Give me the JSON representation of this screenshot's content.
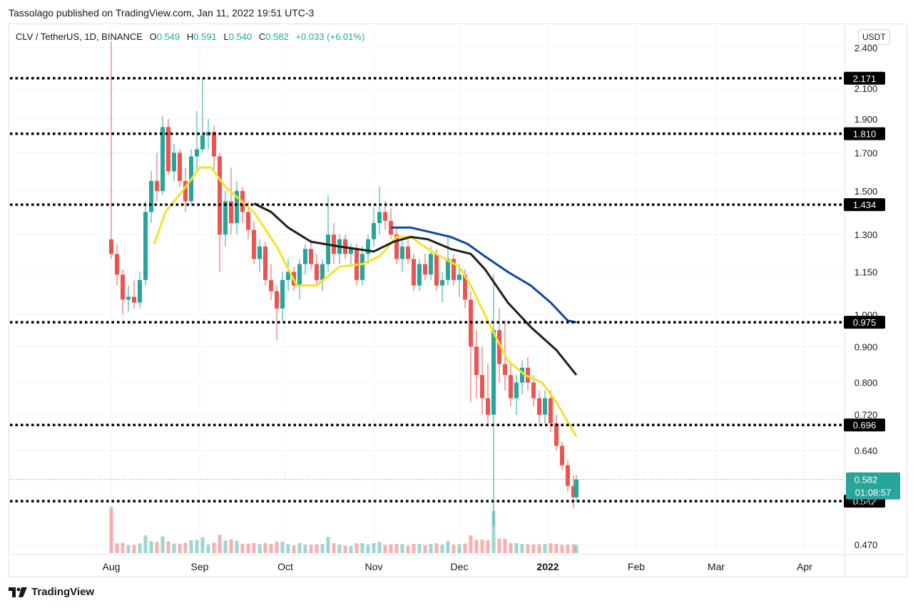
{
  "header": {
    "published": "Tassolago published on TradingView.com, Jan 11, 2022 19:51 UTC-3"
  },
  "legend": {
    "symbol": "CLV / TetherUS, 1D, BINANCE",
    "open_label": "O",
    "open": "0.549",
    "high_label": "H",
    "high": "0.591",
    "low_label": "L",
    "low": "0.540",
    "close_label": "C",
    "close": "0.582",
    "change": "+0.033 (+6.01%)"
  },
  "price_axis": {
    "unit": "USDT"
  },
  "brand": {
    "name": "TradingView",
    "logo_icon": "tradingview-logo-icon"
  },
  "colors": {
    "up": "#26a69a",
    "down": "#ef5350",
    "ma_fast": "#f5e327",
    "ma_mid": "#1e1e1e",
    "ma_slow": "#0d47a1",
    "level": "#000000"
  },
  "chart_data": {
    "type": "candlestick",
    "y_scale": "log",
    "ylim": [
      0.455,
      2.58
    ],
    "y_ticks": [
      "2.400",
      "2.100",
      "1.900",
      "1.700",
      "1.500",
      "1.300",
      "1.150",
      "1.000",
      "0.900",
      "0.800",
      "0.720",
      "0.640",
      "0.542",
      "0.470"
    ],
    "x_ticks": [
      "Aug",
      "Sep",
      "Oct",
      "Nov",
      "Dec",
      "2022",
      "Feb",
      "Mar",
      "Apr"
    ],
    "horizontal_levels": [
      "2.171",
      "1.810",
      "1.434",
      "0.975",
      "0.696",
      "0.542"
    ],
    "last_price": "0.582",
    "countdown": "01:08:57",
    "series": [
      {
        "name": "",
        "kind": "ma_fast",
        "points": [
          [
            "2021-08-16",
            1.26
          ],
          [
            "2021-08-20",
            1.4
          ],
          [
            "2021-08-26",
            1.5
          ],
          [
            "2021-09-01",
            1.62
          ],
          [
            "2021-09-05",
            1.62
          ],
          [
            "2021-09-10",
            1.52
          ],
          [
            "2021-09-20",
            1.4
          ],
          [
            "2021-09-28",
            1.25
          ],
          [
            "2021-10-05",
            1.1
          ],
          [
            "2021-10-12",
            1.1
          ],
          [
            "2021-10-20",
            1.17
          ],
          [
            "2021-10-28",
            1.18
          ],
          [
            "2021-11-03",
            1.21
          ],
          [
            "2021-11-09",
            1.29
          ],
          [
            "2021-11-14",
            1.29
          ],
          [
            "2021-11-20",
            1.24
          ],
          [
            "2021-11-26",
            1.2
          ],
          [
            "2021-12-01",
            1.17
          ],
          [
            "2021-12-05",
            1.1
          ],
          [
            "2021-12-12",
            0.96
          ],
          [
            "2021-12-18",
            0.86
          ],
          [
            "2021-12-24",
            0.82
          ],
          [
            "2021-12-30",
            0.8
          ],
          [
            "2022-01-04",
            0.75
          ],
          [
            "2022-01-11",
            0.67
          ]
        ]
      },
      {
        "name": "",
        "kind": "ma_mid",
        "points": [
          [
            "2021-09-20",
            1.44
          ],
          [
            "2021-09-26",
            1.4
          ],
          [
            "2021-10-02",
            1.33
          ],
          [
            "2021-10-10",
            1.27
          ],
          [
            "2021-10-20",
            1.25
          ],
          [
            "2021-11-01",
            1.23
          ],
          [
            "2021-11-08",
            1.27
          ],
          [
            "2021-11-14",
            1.29
          ],
          [
            "2021-11-20",
            1.28
          ],
          [
            "2021-11-28",
            1.24
          ],
          [
            "2021-12-05",
            1.22
          ],
          [
            "2021-12-10",
            1.16
          ],
          [
            "2021-12-18",
            1.04
          ],
          [
            "2021-12-26",
            0.96
          ],
          [
            "2022-01-04",
            0.89
          ],
          [
            "2022-01-11",
            0.82
          ]
        ]
      },
      {
        "name": "",
        "kind": "ma_slow",
        "points": [
          [
            "2021-11-07",
            1.33
          ],
          [
            "2021-11-14",
            1.33
          ],
          [
            "2021-11-21",
            1.31
          ],
          [
            "2021-11-28",
            1.29
          ],
          [
            "2021-12-04",
            1.26
          ],
          [
            "2021-12-10",
            1.21
          ],
          [
            "2021-12-18",
            1.15
          ],
          [
            "2021-12-26",
            1.1
          ],
          [
            "2022-01-02",
            1.04
          ],
          [
            "2022-01-08",
            0.98
          ],
          [
            "2022-01-11",
            0.975
          ]
        ]
      }
    ],
    "candles": [
      {
        "d": "2021-08-01",
        "o": 1.28,
        "h": 2.45,
        "l": 1.2,
        "c": 1.22
      },
      {
        "d": "2021-08-03",
        "o": 1.22,
        "h": 1.26,
        "l": 1.1,
        "c": 1.14
      },
      {
        "d": "2021-08-05",
        "o": 1.14,
        "h": 1.16,
        "l": 1.0,
        "c": 1.05
      },
      {
        "d": "2021-08-07",
        "o": 1.05,
        "h": 1.1,
        "l": 1.01,
        "c": 1.06
      },
      {
        "d": "2021-08-09",
        "o": 1.06,
        "h": 1.12,
        "l": 1.02,
        "c": 1.04
      },
      {
        "d": "2021-08-11",
        "o": 1.04,
        "h": 1.15,
        "l": 1.02,
        "c": 1.12
      },
      {
        "d": "2021-08-13",
        "o": 1.12,
        "h": 1.45,
        "l": 1.1,
        "c": 1.4
      },
      {
        "d": "2021-08-15",
        "o": 1.4,
        "h": 1.6,
        "l": 1.35,
        "c": 1.55
      },
      {
        "d": "2021-08-17",
        "o": 1.55,
        "h": 1.7,
        "l": 1.45,
        "c": 1.5
      },
      {
        "d": "2021-08-19",
        "o": 1.5,
        "h": 1.92,
        "l": 1.48,
        "c": 1.85
      },
      {
        "d": "2021-08-21",
        "o": 1.85,
        "h": 1.9,
        "l": 1.58,
        "c": 1.6
      },
      {
        "d": "2021-08-23",
        "o": 1.6,
        "h": 1.75,
        "l": 1.55,
        "c": 1.7
      },
      {
        "d": "2021-08-25",
        "o": 1.7,
        "h": 1.72,
        "l": 1.52,
        "c": 1.55
      },
      {
        "d": "2021-08-27",
        "o": 1.55,
        "h": 1.62,
        "l": 1.4,
        "c": 1.45
      },
      {
        "d": "2021-08-29",
        "o": 1.45,
        "h": 1.72,
        "l": 1.43,
        "c": 1.68
      },
      {
        "d": "2021-08-31",
        "o": 1.68,
        "h": 1.95,
        "l": 1.6,
        "c": 1.72
      },
      {
        "d": "2021-09-02",
        "o": 1.72,
        "h": 2.17,
        "l": 1.7,
        "c": 1.8
      },
      {
        "d": "2021-09-04",
        "o": 1.8,
        "h": 1.9,
        "l": 1.72,
        "c": 1.82
      },
      {
        "d": "2021-09-06",
        "o": 1.82,
        "h": 1.86,
        "l": 1.6,
        "c": 1.68
      },
      {
        "d": "2021-09-08",
        "o": 1.68,
        "h": 1.7,
        "l": 1.15,
        "c": 1.3
      },
      {
        "d": "2021-09-10",
        "o": 1.3,
        "h": 1.5,
        "l": 1.25,
        "c": 1.45
      },
      {
        "d": "2021-09-12",
        "o": 1.45,
        "h": 1.62,
        "l": 1.3,
        "c": 1.35
      },
      {
        "d": "2021-09-14",
        "o": 1.35,
        "h": 1.55,
        "l": 1.3,
        "c": 1.5
      },
      {
        "d": "2021-09-16",
        "o": 1.5,
        "h": 1.52,
        "l": 1.35,
        "c": 1.4
      },
      {
        "d": "2021-09-18",
        "o": 1.4,
        "h": 1.45,
        "l": 1.28,
        "c": 1.32
      },
      {
        "d": "2021-09-20",
        "o": 1.32,
        "h": 1.36,
        "l": 1.18,
        "c": 1.2
      },
      {
        "d": "2021-09-22",
        "o": 1.2,
        "h": 1.28,
        "l": 1.15,
        "c": 1.25
      },
      {
        "d": "2021-09-24",
        "o": 1.25,
        "h": 1.27,
        "l": 1.1,
        "c": 1.12
      },
      {
        "d": "2021-09-26",
        "o": 1.12,
        "h": 1.18,
        "l": 1.05,
        "c": 1.08
      },
      {
        "d": "2021-09-28",
        "o": 1.08,
        "h": 1.1,
        "l": 0.92,
        "c": 1.02
      },
      {
        "d": "2021-09-30",
        "o": 1.02,
        "h": 1.15,
        "l": 0.98,
        "c": 1.12
      },
      {
        "d": "2021-10-02",
        "o": 1.12,
        "h": 1.2,
        "l": 1.08,
        "c": 1.15
      },
      {
        "d": "2021-10-04",
        "o": 1.15,
        "h": 1.17,
        "l": 1.08,
        "c": 1.1
      },
      {
        "d": "2021-10-06",
        "o": 1.1,
        "h": 1.2,
        "l": 1.05,
        "c": 1.18
      },
      {
        "d": "2021-10-08",
        "o": 1.18,
        "h": 1.26,
        "l": 1.14,
        "c": 1.24
      },
      {
        "d": "2021-10-10",
        "o": 1.24,
        "h": 1.28,
        "l": 1.16,
        "c": 1.18
      },
      {
        "d": "2021-10-12",
        "o": 1.18,
        "h": 1.22,
        "l": 1.1,
        "c": 1.12
      },
      {
        "d": "2021-10-14",
        "o": 1.12,
        "h": 1.2,
        "l": 1.08,
        "c": 1.18
      },
      {
        "d": "2021-10-16",
        "o": 1.18,
        "h": 1.48,
        "l": 1.15,
        "c": 1.3
      },
      {
        "d": "2021-10-18",
        "o": 1.3,
        "h": 1.35,
        "l": 1.18,
        "c": 1.22
      },
      {
        "d": "2021-10-20",
        "o": 1.22,
        "h": 1.3,
        "l": 1.18,
        "c": 1.28
      },
      {
        "d": "2021-10-22",
        "o": 1.28,
        "h": 1.3,
        "l": 1.2,
        "c": 1.22
      },
      {
        "d": "2021-10-24",
        "o": 1.22,
        "h": 1.26,
        "l": 1.18,
        "c": 1.24
      },
      {
        "d": "2021-10-26",
        "o": 1.24,
        "h": 1.26,
        "l": 1.1,
        "c": 1.12
      },
      {
        "d": "2021-10-28",
        "o": 1.12,
        "h": 1.25,
        "l": 1.1,
        "c": 1.22
      },
      {
        "d": "2021-10-30",
        "o": 1.22,
        "h": 1.3,
        "l": 1.18,
        "c": 1.28
      },
      {
        "d": "2021-11-01",
        "o": 1.28,
        "h": 1.42,
        "l": 1.25,
        "c": 1.35
      },
      {
        "d": "2021-11-03",
        "o": 1.35,
        "h": 1.52,
        "l": 1.3,
        "c": 1.4
      },
      {
        "d": "2021-11-05",
        "o": 1.4,
        "h": 1.45,
        "l": 1.32,
        "c": 1.36
      },
      {
        "d": "2021-11-07",
        "o": 1.36,
        "h": 1.42,
        "l": 1.28,
        "c": 1.3
      },
      {
        "d": "2021-11-09",
        "o": 1.3,
        "h": 1.33,
        "l": 1.18,
        "c": 1.2
      },
      {
        "d": "2021-11-11",
        "o": 1.2,
        "h": 1.28,
        "l": 1.15,
        "c": 1.25
      },
      {
        "d": "2021-11-13",
        "o": 1.25,
        "h": 1.28,
        "l": 1.18,
        "c": 1.2
      },
      {
        "d": "2021-11-15",
        "o": 1.2,
        "h": 1.22,
        "l": 1.08,
        "c": 1.1
      },
      {
        "d": "2021-11-17",
        "o": 1.1,
        "h": 1.2,
        "l": 1.08,
        "c": 1.18
      },
      {
        "d": "2021-11-19",
        "o": 1.18,
        "h": 1.22,
        "l": 1.12,
        "c": 1.14
      },
      {
        "d": "2021-11-21",
        "o": 1.14,
        "h": 1.25,
        "l": 1.12,
        "c": 1.22
      },
      {
        "d": "2021-11-23",
        "o": 1.22,
        "h": 1.24,
        "l": 1.08,
        "c": 1.1
      },
      {
        "d": "2021-11-25",
        "o": 1.1,
        "h": 1.15,
        "l": 1.04,
        "c": 1.12
      },
      {
        "d": "2021-11-27",
        "o": 1.12,
        "h": 1.3,
        "l": 1.1,
        "c": 1.2
      },
      {
        "d": "2021-11-29",
        "o": 1.2,
        "h": 1.22,
        "l": 1.1,
        "c": 1.12
      },
      {
        "d": "2021-12-01",
        "o": 1.12,
        "h": 1.18,
        "l": 1.06,
        "c": 1.14
      },
      {
        "d": "2021-12-03",
        "o": 1.14,
        "h": 1.16,
        "l": 1.02,
        "c": 1.05
      },
      {
        "d": "2021-12-05",
        "o": 1.05,
        "h": 1.08,
        "l": 0.75,
        "c": 0.9
      },
      {
        "d": "2021-12-07",
        "o": 0.9,
        "h": 0.95,
        "l": 0.76,
        "c": 0.82
      },
      {
        "d": "2021-12-09",
        "o": 0.82,
        "h": 0.9,
        "l": 0.72,
        "c": 0.76
      },
      {
        "d": "2021-12-11",
        "o": 0.76,
        "h": 0.85,
        "l": 0.7,
        "c": 0.72
      },
      {
        "d": "2021-12-13",
        "o": 0.72,
        "h": 1.14,
        "l": 0.5,
        "c": 0.95
      },
      {
        "d": "2021-12-15",
        "o": 0.95,
        "h": 1.02,
        "l": 0.8,
        "c": 0.85
      },
      {
        "d": "2021-12-17",
        "o": 0.85,
        "h": 0.98,
        "l": 0.78,
        "c": 0.82
      },
      {
        "d": "2021-12-19",
        "o": 0.82,
        "h": 0.85,
        "l": 0.74,
        "c": 0.76
      },
      {
        "d": "2021-12-21",
        "o": 0.76,
        "h": 0.82,
        "l": 0.72,
        "c": 0.8
      },
      {
        "d": "2021-12-23",
        "o": 0.8,
        "h": 0.86,
        "l": 0.77,
        "c": 0.84
      },
      {
        "d": "2021-12-25",
        "o": 0.84,
        "h": 0.87,
        "l": 0.78,
        "c": 0.8
      },
      {
        "d": "2021-12-27",
        "o": 0.8,
        "h": 0.82,
        "l": 0.74,
        "c": 0.76
      },
      {
        "d": "2021-12-29",
        "o": 0.76,
        "h": 0.78,
        "l": 0.7,
        "c": 0.72
      },
      {
        "d": "2021-12-31",
        "o": 0.72,
        "h": 0.78,
        "l": 0.7,
        "c": 0.76
      },
      {
        "d": "2022-01-02",
        "o": 0.76,
        "h": 0.78,
        "l": 0.68,
        "c": 0.7
      },
      {
        "d": "2022-01-04",
        "o": 0.7,
        "h": 0.72,
        "l": 0.64,
        "c": 0.65
      },
      {
        "d": "2022-01-06",
        "o": 0.65,
        "h": 0.66,
        "l": 0.6,
        "c": 0.61
      },
      {
        "d": "2022-01-08",
        "o": 0.61,
        "h": 0.62,
        "l": 0.56,
        "c": 0.57
      },
      {
        "d": "2022-01-10",
        "o": 0.57,
        "h": 0.59,
        "l": 0.53,
        "c": 0.549
      },
      {
        "d": "2022-01-11",
        "o": 0.549,
        "h": 0.591,
        "l": 0.54,
        "c": 0.582
      }
    ]
  }
}
